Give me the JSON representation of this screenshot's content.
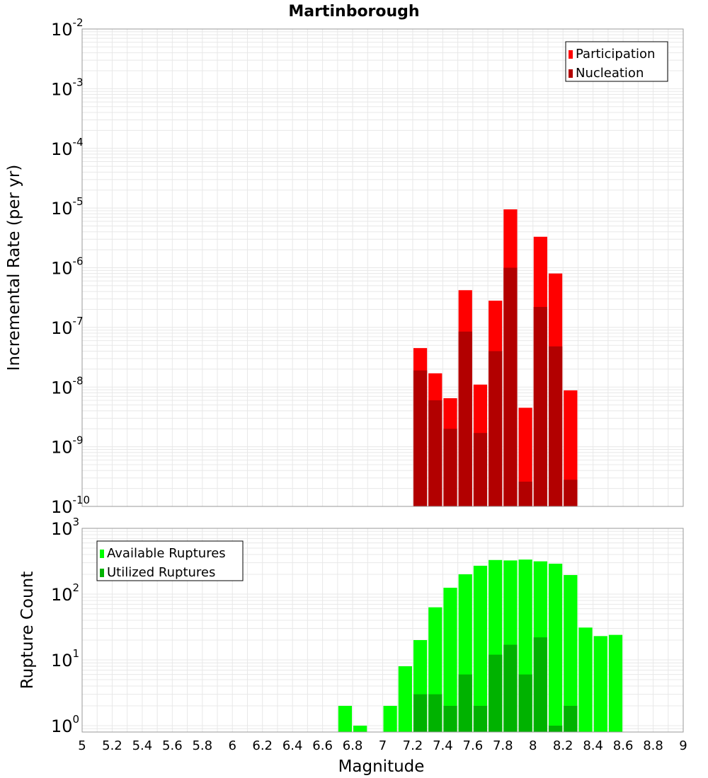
{
  "chart_data": [
    {
      "type": "bar",
      "title": "Martinborough",
      "xlabel": "",
      "ylabel": "Incremental Rate (per yr)",
      "yscale": "log",
      "ylim": [
        1e-10,
        0.01
      ],
      "xlim": [
        5,
        9
      ],
      "bar_width": 0.1,
      "y_tick_exponents": [
        "-10",
        "-9",
        "-8",
        "-7",
        "-6",
        "-5",
        "-4",
        "-3",
        "-2"
      ],
      "legend_position": "top-right",
      "series": [
        {
          "name": "Participation",
          "color": "#ff0000",
          "x": [
            7.25,
            7.35,
            7.45,
            7.55,
            7.65,
            7.75,
            7.85,
            7.95,
            8.05,
            8.15,
            8.25
          ],
          "values": [
            4.5e-08,
            1.7e-08,
            6.5e-09,
            4.2e-07,
            1.1e-08,
            2.8e-07,
            9.5e-06,
            4.5e-09,
            3.3e-06,
            8e-07,
            8.8e-09
          ]
        },
        {
          "name": "Nucleation",
          "color": "#b20000",
          "x": [
            7.25,
            7.35,
            7.45,
            7.55,
            7.65,
            7.75,
            7.85,
            7.95,
            8.05,
            8.15,
            8.25
          ],
          "values": [
            1.9e-08,
            6e-09,
            2e-09,
            8.5e-08,
            1.7e-09,
            4e-08,
            1e-06,
            2.6e-10,
            2.2e-07,
            4.8e-08,
            2.8e-10
          ]
        }
      ]
    },
    {
      "type": "bar",
      "title": "",
      "xlabel": "Magnitude",
      "ylabel": "Rupture Count",
      "yscale": "log",
      "ylim": [
        0.8,
        1000
      ],
      "xlim": [
        5,
        9
      ],
      "bar_width": 0.1,
      "x_ticks": [
        "5",
        "5.2",
        "5.4",
        "5.6",
        "5.8",
        "6",
        "6.2",
        "6.4",
        "6.6",
        "6.8",
        "7",
        "7.2",
        "7.4",
        "7.6",
        "7.8",
        "8",
        "8.2",
        "8.4",
        "8.6",
        "8.8",
        "9"
      ],
      "y_tick_exponents": [
        "0",
        "1",
        "2",
        "3"
      ],
      "legend_position": "top-left",
      "series": [
        {
          "name": "Available Ruptures",
          "color": "#00ff00",
          "x": [
            6.75,
            6.85,
            7.05,
            7.15,
            7.25,
            7.35,
            7.45,
            7.55,
            7.65,
            7.75,
            7.85,
            7.95,
            8.05,
            8.15,
            8.25,
            8.35,
            8.45,
            8.55
          ],
          "values": [
            2,
            1,
            2,
            8,
            20,
            63,
            125,
            200,
            270,
            330,
            325,
            335,
            315,
            290,
            195,
            31,
            23,
            24
          ]
        },
        {
          "name": "Utilized Ruptures",
          "color": "#00b200",
          "x": [
            7.25,
            7.35,
            7.45,
            7.55,
            7.65,
            7.75,
            7.85,
            7.95,
            8.05,
            8.15,
            8.25
          ],
          "values": [
            3,
            3,
            2,
            6,
            2,
            12,
            17,
            6,
            22,
            1,
            2
          ]
        }
      ]
    }
  ]
}
